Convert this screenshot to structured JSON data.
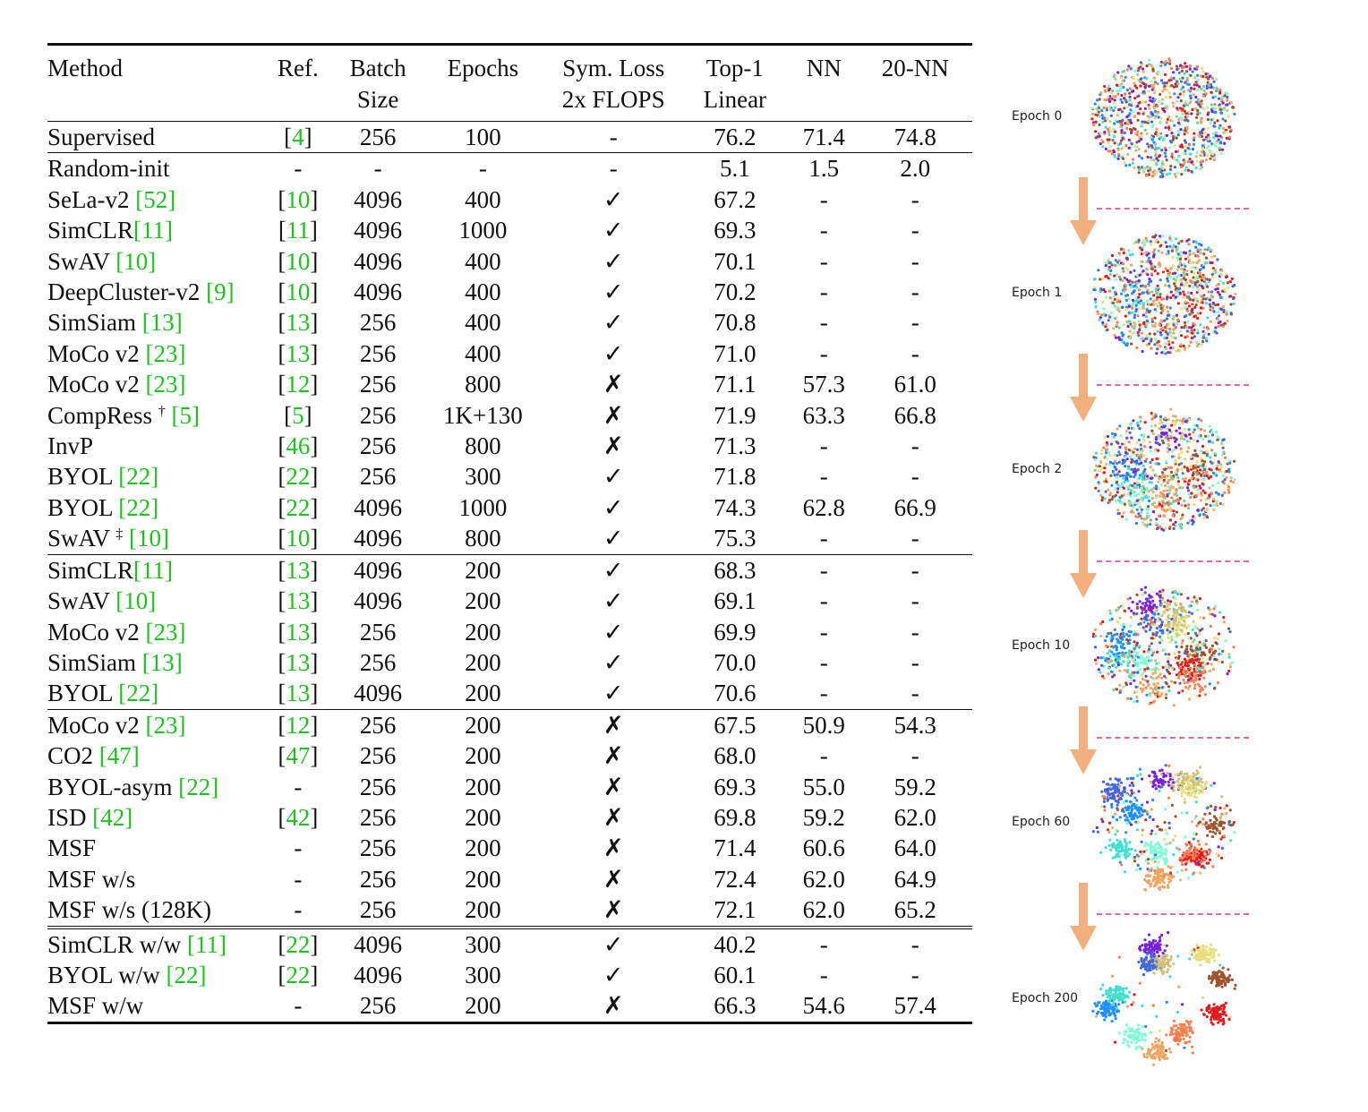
{
  "table": {
    "headers": {
      "method": "Method",
      "ref": "Ref.",
      "batch_line1": "Batch",
      "batch_line2": "Size",
      "epochs": "Epochs",
      "sym_line1": "Sym. Loss",
      "sym_line2": "2x FLOPS",
      "top1_line1": "Top-1",
      "top1_line2": "Linear",
      "nn": "NN",
      "nn20": "20-NN"
    },
    "groups": [
      [
        {
          "method": "Supervised",
          "method_cite": "",
          "ref": "[4]",
          "ref_is_cite": true,
          "batch": "256",
          "epochs": "100",
          "sym": "-",
          "top1": "76.2",
          "nn": "71.4",
          "nn20": "74.8"
        }
      ],
      [
        {
          "method": "Random-init",
          "method_cite": "",
          "ref": "-",
          "ref_is_cite": false,
          "batch": "-",
          "epochs": "-",
          "sym": "-",
          "top1": "5.1",
          "nn": "1.5",
          "nn20": "2.0"
        },
        {
          "method": "SeLa-v2 ",
          "method_cite": "[52]",
          "ref": "[10]",
          "ref_is_cite": true,
          "batch": "4096",
          "epochs": "400",
          "sym": "✓",
          "top1": "67.2",
          "nn": "-",
          "nn20": "-"
        },
        {
          "method": "SimCLR",
          "method_cite": "[11]",
          "ref": "[11]",
          "ref_is_cite": true,
          "batch": "4096",
          "epochs": "1000",
          "sym": "✓",
          "top1": "69.3",
          "nn": "-",
          "nn20": "-"
        },
        {
          "method": "SwAV ",
          "method_cite": "[10]",
          "ref": "[10]",
          "ref_is_cite": true,
          "batch": "4096",
          "epochs": "400",
          "sym": "✓",
          "top1": "70.1",
          "nn": "-",
          "nn20": "-"
        },
        {
          "method": "DeepCluster-v2 ",
          "method_cite": "[9]",
          "ref": "[10]",
          "ref_is_cite": true,
          "batch": "4096",
          "epochs": "400",
          "sym": "✓",
          "top1": "70.2",
          "nn": "-",
          "nn20": "-"
        },
        {
          "method": "SimSiam ",
          "method_cite": "[13]",
          "ref": "[13]",
          "ref_is_cite": true,
          "batch": "256",
          "epochs": "400",
          "sym": "✓",
          "top1": "70.8",
          "nn": "-",
          "nn20": "-"
        },
        {
          "method": "MoCo v2 ",
          "method_cite": "[23]",
          "ref": "[13]",
          "ref_is_cite": true,
          "batch": "256",
          "epochs": "400",
          "sym": "✓",
          "top1": "71.0",
          "nn": "-",
          "nn20": "-"
        },
        {
          "method": "MoCo v2 ",
          "method_cite": "[23]",
          "ref": "[12]",
          "ref_is_cite": true,
          "batch": "256",
          "epochs": "800",
          "sym": "✗",
          "top1": "71.1",
          "nn": "57.3",
          "nn20": "61.0"
        },
        {
          "method": "CompRess ",
          "method_mark": "†",
          "method_cite": " [5]",
          "ref": "[5]",
          "ref_is_cite": true,
          "batch": "256",
          "epochs": "1K+130",
          "sym": "✗",
          "top1": "71.9",
          "nn": "63.3",
          "nn20": "66.8"
        },
        {
          "method": "InvP",
          "method_cite": "",
          "ref": "[46]",
          "ref_is_cite": true,
          "batch": "256",
          "epochs": "800",
          "sym": "✗",
          "top1": "71.3",
          "nn": "-",
          "nn20": "-"
        },
        {
          "method": "BYOL ",
          "method_cite": "[22]",
          "ref": "[22]",
          "ref_is_cite": true,
          "batch": "256",
          "epochs": "300",
          "sym": "✓",
          "top1": "71.8",
          "nn": "-",
          "nn20": "-"
        },
        {
          "method": "BYOL ",
          "method_cite": "[22]",
          "ref": "[22]",
          "ref_is_cite": true,
          "batch": "4096",
          "epochs": "1000",
          "sym": "✓",
          "top1": "74.3",
          "nn": "62.8",
          "nn20": "66.9"
        },
        {
          "method": "SwAV ",
          "method_mark": "‡",
          "method_cite": " [10]",
          "ref": "[10]",
          "ref_is_cite": true,
          "batch": "4096",
          "epochs": "800",
          "sym": "✓",
          "top1": "75.3",
          "top1_bold": true,
          "nn": "-",
          "nn20": "-"
        }
      ],
      [
        {
          "method": "SimCLR",
          "method_cite": "[11]",
          "ref": "[13]",
          "ref_is_cite": true,
          "batch": "4096",
          "epochs": "200",
          "sym": "✓",
          "top1": "68.3",
          "nn": "-",
          "nn20": "-"
        },
        {
          "method": "SwAV ",
          "method_cite": "[10]",
          "ref": "[13]",
          "ref_is_cite": true,
          "batch": "4096",
          "epochs": "200",
          "sym": "✓",
          "top1": "69.1",
          "nn": "-",
          "nn20": "-"
        },
        {
          "method": "MoCo v2 ",
          "method_cite": "[23]",
          "ref": "[13]",
          "ref_is_cite": true,
          "batch": "256",
          "epochs": "200",
          "sym": "✓",
          "top1": "69.9",
          "nn": "-",
          "nn20": "-"
        },
        {
          "method": "SimSiam ",
          "method_cite": "[13]",
          "ref": "[13]",
          "ref_is_cite": true,
          "batch": "256",
          "epochs": "200",
          "sym": "✓",
          "top1": "70.0",
          "nn": "-",
          "nn20": "-"
        },
        {
          "method": "BYOL ",
          "method_cite": "[22]",
          "ref": "[13]",
          "ref_is_cite": true,
          "batch": "4096",
          "epochs": "200",
          "sym": "✓",
          "top1": "70.6",
          "top1_bold": true,
          "nn": "-",
          "nn20": "-"
        }
      ],
      [
        {
          "method": "MoCo v2 ",
          "method_cite": "[23]",
          "ref": "[12]",
          "ref_is_cite": true,
          "batch": "256",
          "epochs": "200",
          "sym": "✗",
          "top1": "67.5",
          "nn": "50.9",
          "nn20": "54.3"
        },
        {
          "method": "CO2 ",
          "method_cite": "[47]",
          "ref": "[47]",
          "ref_is_cite": true,
          "batch": "256",
          "epochs": "200",
          "sym": "✗",
          "top1": "68.0",
          "nn": "-",
          "nn20": "-"
        },
        {
          "method": "BYOL-asym ",
          "method_cite": "[22]",
          "ref": "-",
          "ref_is_cite": false,
          "batch": "256",
          "epochs": "200",
          "sym": "✗",
          "top1": "69.3",
          "nn": "55.0",
          "nn20": "59.2"
        },
        {
          "method": "ISD ",
          "method_cite": "[42]",
          "ref": "[42]",
          "ref_is_cite": true,
          "batch": "256",
          "epochs": "200",
          "sym": "✗",
          "top1": "69.8",
          "nn": "59.2",
          "nn20": "62.0"
        },
        {
          "method": "MSF",
          "method_cite": "",
          "ref": "-",
          "ref_is_cite": false,
          "batch": "256",
          "epochs": "200",
          "sym": "✗",
          "top1": "71.4",
          "nn": "60.6",
          "nn20": "64.0"
        },
        {
          "method": "MSF w/s",
          "method_cite": "",
          "ref": "-",
          "ref_is_cite": false,
          "batch": "256",
          "epochs": "200",
          "sym": "✗",
          "top1": "72.4",
          "top1_bold": true,
          "nn": "62.0",
          "nn_bold": true,
          "nn20": "64.9"
        },
        {
          "method": "MSF w/s (128K)",
          "method_cite": "",
          "ref": "-",
          "ref_is_cite": false,
          "batch": "256",
          "epochs": "200",
          "sym": "✗",
          "top1": "72.1",
          "nn": "62.0",
          "nn_bold": true,
          "nn20": "65.2",
          "nn20_bold": true
        }
      ],
      [
        {
          "method": "SimCLR w/w ",
          "method_cite": "[11]",
          "ref": "[22]",
          "ref_is_cite": true,
          "batch": "4096",
          "epochs": "300",
          "sym": "✓",
          "top1": "40.2",
          "nn": "-",
          "nn20": "-"
        },
        {
          "method": "BYOL w/w ",
          "method_cite": "[22]",
          "ref": "[22]",
          "ref_is_cite": true,
          "batch": "4096",
          "epochs": "300",
          "sym": "✓",
          "top1": "60.1",
          "nn": "-",
          "nn20": "-"
        },
        {
          "method": "MSF w/w",
          "method_cite": "",
          "ref": "-",
          "ref_is_cite": false,
          "batch": "256",
          "epochs": "200",
          "sym": "✗",
          "top1": "66.3",
          "top1_bold": true,
          "nn": "54.6",
          "nn20": "57.4"
        }
      ]
    ]
  },
  "figure": {
    "epochs": [
      {
        "label": "Epoch 0",
        "stage": 0
      },
      {
        "label": "Epoch 1",
        "stage": 1
      },
      {
        "label": "Epoch 2",
        "stage": 2
      },
      {
        "label": "Epoch 10",
        "stage": 3
      },
      {
        "label": "Epoch 60",
        "stage": 4
      },
      {
        "label": "Epoch 200",
        "stage": 5
      }
    ],
    "colors": {
      "arrow": "#f2b07e",
      "dashed_line": "#e06aa0",
      "cluster_palette": [
        "#e41a1c",
        "#ff7f50",
        "#f4a460",
        "#7fffd4",
        "#40e0d0",
        "#1e90ff",
        "#4169e1",
        "#7b1fe0",
        "#d2c17a",
        "#e8e07a",
        "#a0522d"
      ]
    }
  }
}
